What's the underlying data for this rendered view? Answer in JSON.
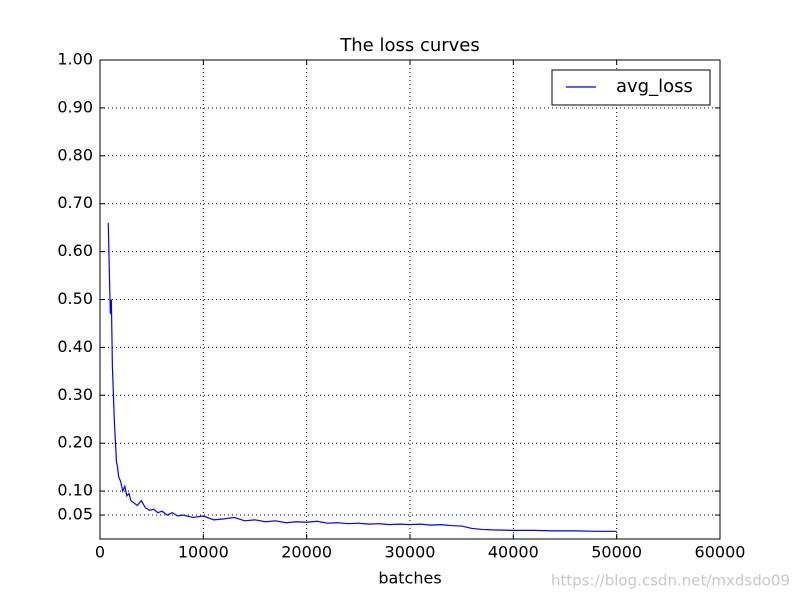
{
  "chart_data": {
    "type": "line",
    "title": "The loss curves",
    "x_label": "batches",
    "watermark": "https://blog.csdn.net/mxdsdo09",
    "x": [
      800,
      900,
      1000,
      1100,
      1200,
      1300,
      1400,
      1500,
      1600,
      1700,
      1800,
      2000,
      2200,
      2400,
      2600,
      2800,
      3000,
      3300,
      3600,
      4000,
      4400,
      4800,
      5200,
      5600,
      6000,
      6500,
      7000,
      7500,
      8000,
      9000,
      10000,
      11000,
      12000,
      13000,
      14000,
      15000,
      16000,
      17000,
      18000,
      19000,
      20000,
      21000,
      22000,
      23000,
      24000,
      25000,
      26000,
      27000,
      28000,
      29000,
      30000,
      31000,
      32000,
      33000,
      34000,
      35000,
      36000,
      37000,
      38000,
      40000,
      42000,
      44000,
      46000,
      48000,
      50000
    ],
    "series": [
      {
        "name": "avg_loss",
        "color": "#0000ff",
        "values": [
          0.66,
          0.56,
          0.47,
          0.5,
          0.36,
          0.3,
          0.24,
          0.2,
          0.16,
          0.15,
          0.13,
          0.12,
          0.1,
          0.11,
          0.09,
          0.095,
          0.08,
          0.075,
          0.07,
          0.08,
          0.065,
          0.06,
          0.062,
          0.055,
          0.058,
          0.05,
          0.055,
          0.048,
          0.05,
          0.045,
          0.048,
          0.04,
          0.042,
          0.045,
          0.038,
          0.04,
          0.036,
          0.038,
          0.034,
          0.036,
          0.035,
          0.037,
          0.033,
          0.034,
          0.032,
          0.033,
          0.031,
          0.032,
          0.03,
          0.031,
          0.03,
          0.031,
          0.029,
          0.03,
          0.028,
          0.027,
          0.022,
          0.02,
          0.019,
          0.018,
          0.018,
          0.017,
          0.017,
          0.016,
          0.016
        ]
      }
    ],
    "xlim": [
      0,
      60000
    ],
    "xticks": [
      0,
      10000,
      20000,
      30000,
      40000,
      50000,
      60000
    ],
    "ylim": [
      0,
      1
    ],
    "yticks": [
      0.05,
      {
        "value": 0.1,
        "label": "0.10"
      },
      {
        "value": 0.2,
        "label": "0.20"
      },
      {
        "value": 0.3,
        "label": "0.30"
      },
      {
        "value": 0.4,
        "label": "0.40"
      },
      {
        "value": 0.5,
        "label": "0.50"
      },
      {
        "value": 0.6,
        "label": "0.60"
      },
      {
        "value": 0.7,
        "label": "0.70"
      },
      {
        "value": 0.8,
        "label": "0.80"
      },
      {
        "value": 0.9,
        "label": "0.90"
      },
      {
        "value": 1,
        "label": "1.00"
      }
    ],
    "grid": true,
    "legend": "upper right"
  }
}
